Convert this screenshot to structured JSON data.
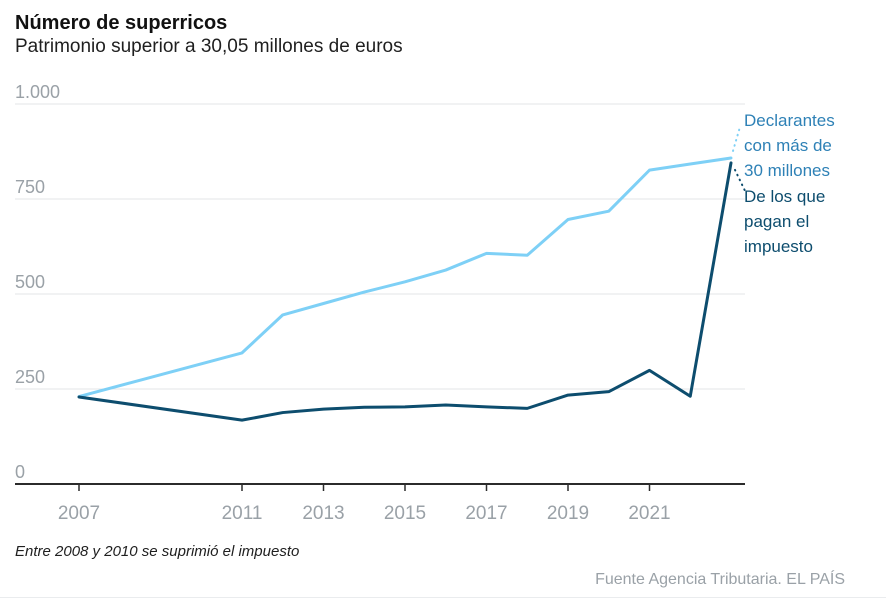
{
  "header": {
    "title": "Número de superricos",
    "subtitle": "Patrimonio superior a 30,05 millones de euros"
  },
  "chart_data": {
    "type": "line",
    "x": [
      2007,
      2011,
      2012,
      2013,
      2014,
      2015,
      2016,
      2017,
      2018,
      2019,
      2020,
      2021,
      2022,
      2023
    ],
    "series": [
      {
        "name": "Declarantes con más de 30 millones",
        "label_text": "Declarantes\ncon más de\n30 millones",
        "color": "#7ed0f6",
        "label_color": "#2e81b6",
        "values": [
          230,
          345,
          445,
          475,
          505,
          532,
          563,
          607,
          602,
          696,
          718,
          826,
          842,
          858
        ]
      },
      {
        "name": "De los que pagan el impuesto",
        "label_text": "De los que\npagan el\nimpuesto",
        "color": "#0d4d6e",
        "label_color": "#0d4d6e",
        "values": [
          229,
          168,
          188,
          197,
          202,
          203,
          208,
          203,
          199,
          234,
          243,
          299,
          231,
          845
        ]
      }
    ],
    "ylim": [
      0,
      1000
    ],
    "yticks": [
      0,
      250,
      500,
      750,
      1000
    ],
    "ytick_labels": [
      "0",
      "250",
      "500",
      "750",
      "1.000"
    ],
    "xticks": [
      2007,
      2011,
      2013,
      2015,
      2017,
      2019,
      2021
    ],
    "grid": "horizontal",
    "legend_position": "right-annotations",
    "annotation_note": "Entre 2008 y 2010 se suprimió el impuesto"
  },
  "colors": {
    "tick_label": "#9aa1a7",
    "gridline": "#e3e5e7",
    "axis": "#2b2b2b"
  },
  "footer": {
    "note": "Entre 2008 y 2010 se suprimió el impuesto",
    "source": "Fuente Agencia Tributaria. EL PAÍS"
  }
}
